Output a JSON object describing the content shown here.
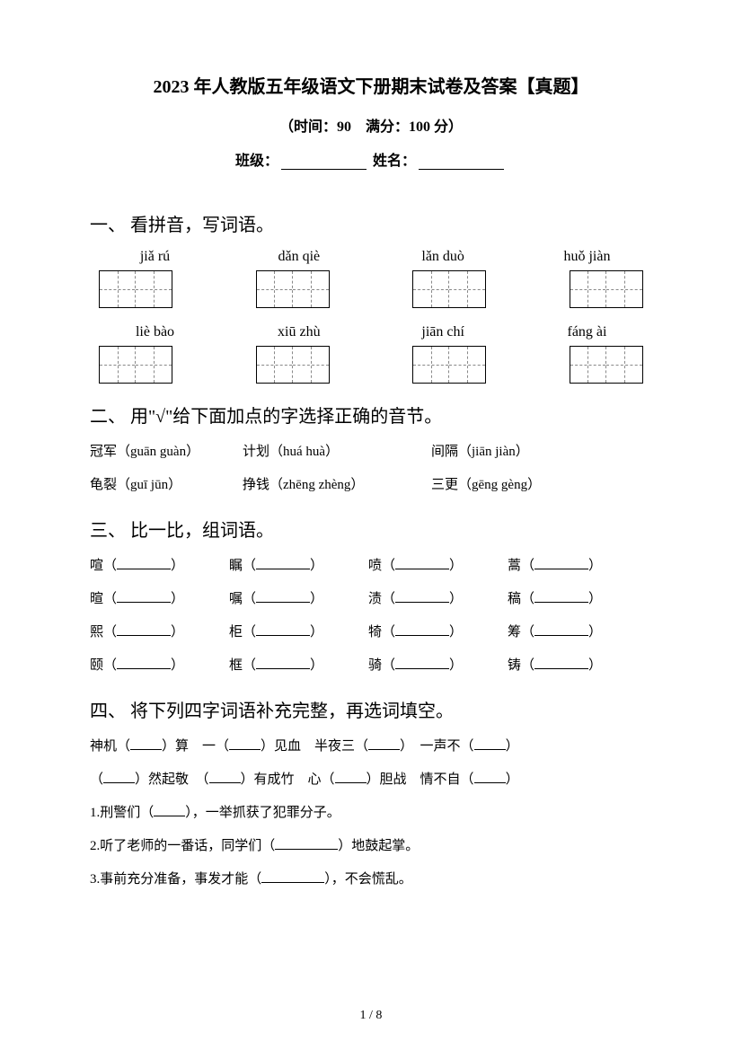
{
  "header": {
    "title": "2023 年人教版五年级语文下册期末试卷及答案【真题】",
    "subtitle": "（时间：90　满分：100 分）",
    "class_label": "班级：",
    "name_label": "姓名："
  },
  "section1": {
    "title": "一、 看拼音，写词语。",
    "row1": [
      "jiǎ rú",
      "dǎn qiè",
      "lǎn duò",
      "huǒ jiàn"
    ],
    "row2": [
      "liè bào",
      "xiū zhù",
      "jiān chí",
      "fáng ài"
    ]
  },
  "section2": {
    "title": "二、 用\"√\"给下面加点的字选择正确的音节。",
    "items": [
      {
        "word": "冠军",
        "pinyin": "（guān guàn）"
      },
      {
        "word": "计划",
        "pinyin": "（huá huà）"
      },
      {
        "word": "间隔",
        "pinyin": "（jiān jiàn）"
      },
      {
        "word": "龟裂",
        "pinyin": "（guī jūn）"
      },
      {
        "word": "挣钱",
        "pinyin": "（zhēng zhèng）"
      },
      {
        "word": "三更",
        "pinyin": "（gēng gèng）"
      }
    ]
  },
  "section3": {
    "title": "三、 比一比，组词语。",
    "rows": [
      [
        "喧",
        "瞩",
        "喷",
        "蒿"
      ],
      [
        "暄",
        "嘱",
        "渍",
        "稿"
      ],
      [
        "熙",
        "柜",
        "犄",
        "筹"
      ],
      [
        "颐",
        "框",
        "骑",
        "铸"
      ]
    ]
  },
  "section4": {
    "title": "四、 将下列四字词语补充完整，再选词填空。",
    "line1_parts": [
      "神机（",
      "）算　一（",
      "）见血　半夜三（",
      "）　一声不（",
      "）"
    ],
    "line2_parts": [
      "（",
      "）然起敬　（",
      "）有成竹　心（",
      "）胆战　情不自（",
      "）"
    ],
    "q1_pre": "1.刑警们（",
    "q1_post": "），一举抓获了犯罪分子。",
    "q2_pre": "2.听了老师的一番话，同学们（",
    "q2_post": "）地鼓起掌。",
    "q3_pre": "3.事前充分准备，事发才能（",
    "q3_post": "），不会慌乱。"
  },
  "footer": {
    "page": "1 / 8"
  }
}
